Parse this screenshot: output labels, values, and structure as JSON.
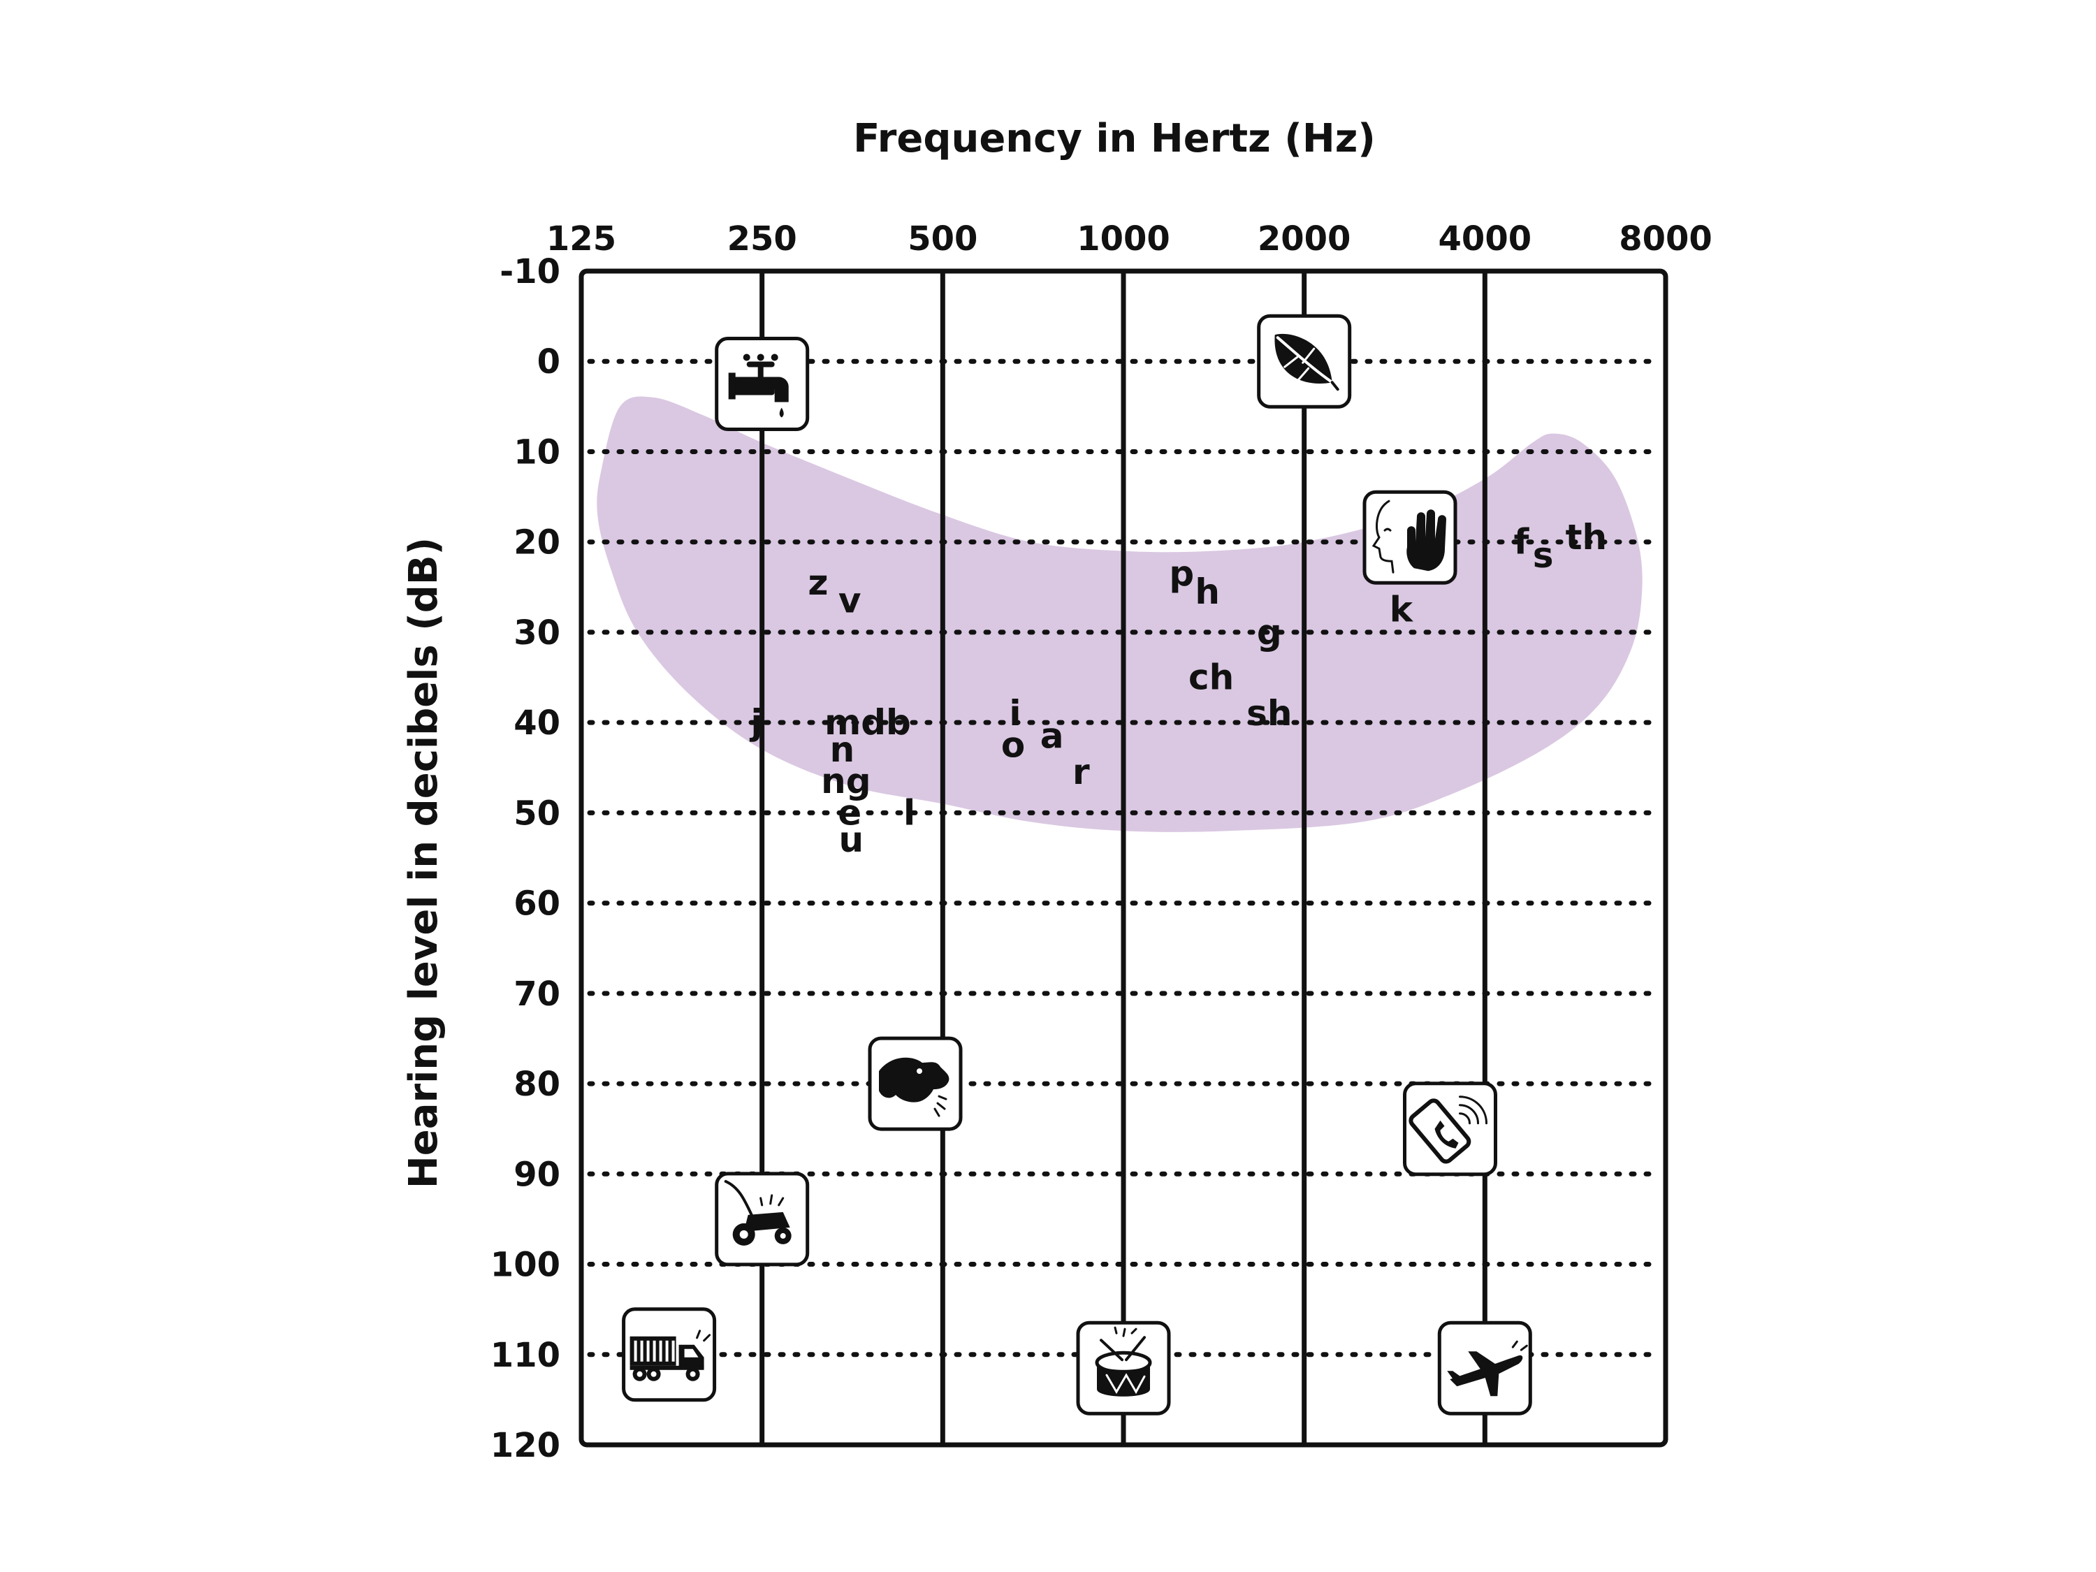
{
  "chart_data": {
    "type": "scatter",
    "title": "Frequency in Hertz (Hz)",
    "xlabel": "Frequency in Hertz (Hz)",
    "ylabel": "Hearing level in decibels (dB)",
    "x_scale": "log2",
    "x_ticks": [
      "125",
      "250",
      "500",
      "1000",
      "2000",
      "4000",
      "8000"
    ],
    "x_values": [
      125,
      250,
      500,
      1000,
      2000,
      4000,
      8000
    ],
    "y_ticks": [
      "-10",
      "0",
      "10",
      "20",
      "30",
      "40",
      "50",
      "60",
      "70",
      "80",
      "90",
      "100",
      "110",
      "120"
    ],
    "ylim": [
      -10,
      120
    ],
    "y_inverted": true,
    "grid": {
      "vertical": "solid",
      "horizontal": "dotted"
    },
    "speech_banana": {
      "color": "#dac8e2",
      "outline": [
        [
          135,
          12
        ],
        [
          145,
          5
        ],
        [
          165,
          4
        ],
        [
          200,
          6
        ],
        [
          250,
          9
        ],
        [
          350,
          13
        ],
        [
          500,
          17
        ],
        [
          700,
          20
        ],
        [
          1000,
          21
        ],
        [
          1400,
          21
        ],
        [
          2000,
          20
        ],
        [
          3000,
          17
        ],
        [
          4000,
          13
        ],
        [
          4800,
          9
        ],
        [
          5200,
          8
        ],
        [
          5800,
          9
        ],
        [
          6600,
          13
        ],
        [
          7200,
          20
        ],
        [
          7300,
          26
        ],
        [
          7000,
          32
        ],
        [
          6200,
          38
        ],
        [
          5000,
          43
        ],
        [
          3500,
          48
        ],
        [
          2500,
          51
        ],
        [
          1500,
          52
        ],
        [
          1000,
          52
        ],
        [
          700,
          51
        ],
        [
          500,
          49
        ],
        [
          350,
          47
        ],
        [
          250,
          43
        ],
        [
          190,
          37
        ],
        [
          155,
          30
        ],
        [
          140,
          23
        ],
        [
          133,
          17
        ]
      ]
    },
    "phonemes": [
      {
        "label": "z",
        "x": 310,
        "y": 24.5
      },
      {
        "label": "v",
        "x": 350,
        "y": 26.5
      },
      {
        "label": "j",
        "x": 245,
        "y": 40
      },
      {
        "label": "mdb",
        "x": 375,
        "y": 40
      },
      {
        "label": "n",
        "x": 340,
        "y": 43
      },
      {
        "label": "ng",
        "x": 345,
        "y": 46.5
      },
      {
        "label": "e",
        "x": 350,
        "y": 50
      },
      {
        "label": "l",
        "x": 440,
        "y": 50
      },
      {
        "label": "u",
        "x": 352,
        "y": 53
      },
      {
        "label": "i",
        "x": 660,
        "y": 39
      },
      {
        "label": "o",
        "x": 655,
        "y": 42.5
      },
      {
        "label": "a",
        "x": 760,
        "y": 41.5
      },
      {
        "label": "r",
        "x": 850,
        "y": 45.5
      },
      {
        "label": "p",
        "x": 1250,
        "y": 23.5
      },
      {
        "label": "h",
        "x": 1380,
        "y": 25.5
      },
      {
        "label": "g",
        "x": 1750,
        "y": 30
      },
      {
        "label": "ch",
        "x": 1400,
        "y": 35
      },
      {
        "label": "sh",
        "x": 1750,
        "y": 39
      },
      {
        "label": "k",
        "x": 2900,
        "y": 27.5
      },
      {
        "label": "f",
        "x": 4600,
        "y": 20
      },
      {
        "label": "s",
        "x": 5000,
        "y": 21.5
      },
      {
        "label": "th",
        "x": 5900,
        "y": 19.5
      }
    ],
    "sounds": [
      {
        "icon": "dripping-faucet-icon",
        "x": 250,
        "y": 2.5
      },
      {
        "icon": "rustling-leaves-icon",
        "x": 2000,
        "y": 0
      },
      {
        "icon": "whisper-icon",
        "x": 3000,
        "y": 19.5
      },
      {
        "icon": "barking-dog-icon",
        "x": 450,
        "y": 80
      },
      {
        "icon": "ringing-phone-icon",
        "x": 3500,
        "y": 85
      },
      {
        "icon": "lawnmower-icon",
        "x": 250,
        "y": 95
      },
      {
        "icon": "truck-icon",
        "x": 175,
        "y": 110
      },
      {
        "icon": "drum-icon",
        "x": 1000,
        "y": 111.5
      },
      {
        "icon": "airplane-icon",
        "x": 4000,
        "y": 111.5
      }
    ]
  }
}
